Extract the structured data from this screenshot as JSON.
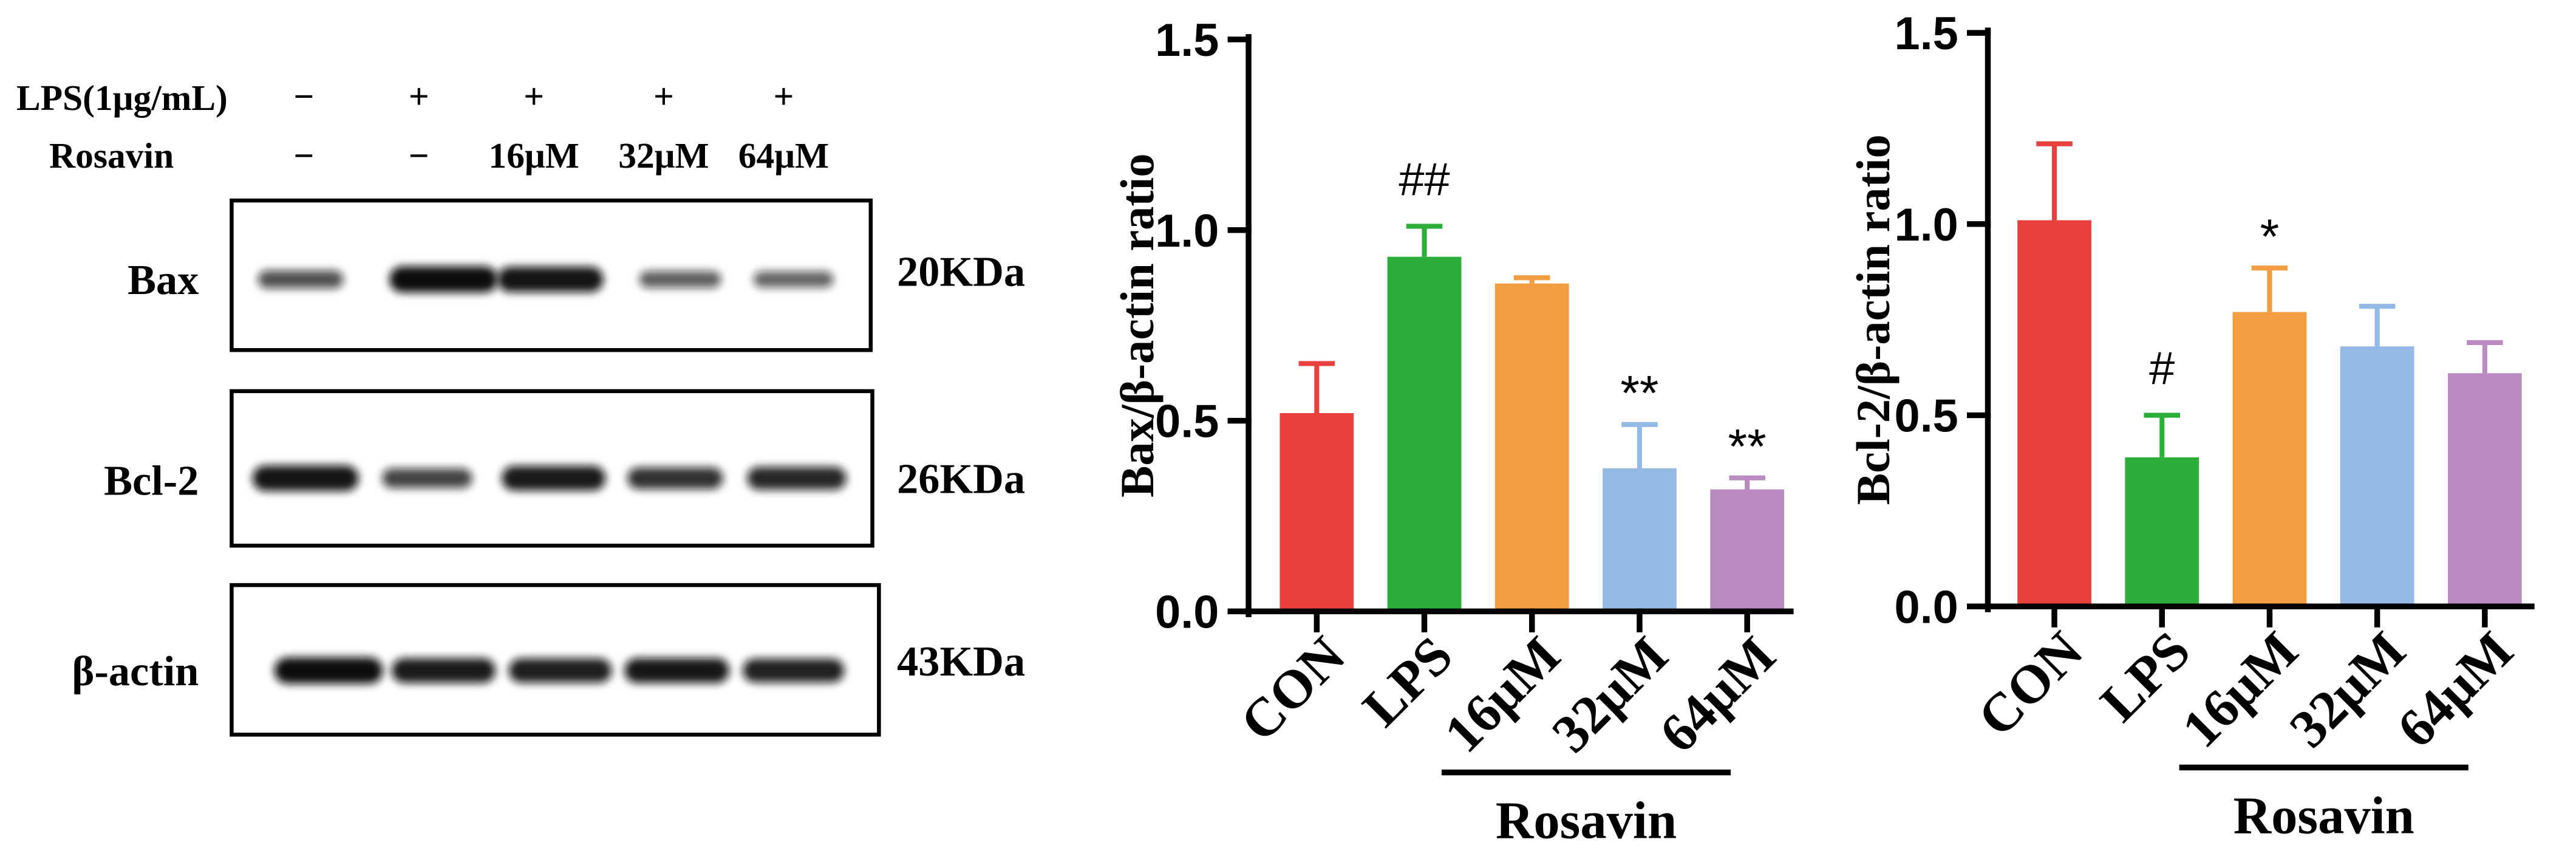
{
  "figure": {
    "blot": {
      "treatment_labels": {
        "lps": "LPS(1μg/mL)",
        "rosavin": "Rosavin"
      },
      "lanes": [
        {
          "lps": "−",
          "rosavin": "−"
        },
        {
          "lps": "+",
          "rosavin": "−"
        },
        {
          "lps": "+",
          "rosavin": "16μM"
        },
        {
          "lps": "+",
          "rosavin": "32μM"
        },
        {
          "lps": "+",
          "rosavin": "64μM"
        }
      ],
      "rows": [
        {
          "protein": "Bax",
          "size": "20KDa",
          "band_intensity": [
            0.5,
            1.0,
            0.95,
            0.42,
            0.38
          ]
        },
        {
          "protein": "Bcl-2",
          "size": "26KDa",
          "band_intensity": [
            0.95,
            0.6,
            0.9,
            0.72,
            0.8
          ]
        },
        {
          "protein": "β-actin",
          "size": "43KDa",
          "band_intensity": [
            1.0,
            0.9,
            0.88,
            0.92,
            0.85
          ]
        }
      ]
    }
  },
  "chart_data": [
    {
      "type": "bar",
      "ylabel": "Bax/β-actin ratio",
      "categories": [
        "CON",
        "LPS",
        "16μM",
        "32μM",
        "64μM"
      ],
      "values": [
        0.52,
        0.93,
        0.86,
        0.375,
        0.32
      ],
      "errors": [
        0.13,
        0.08,
        0.015,
        0.115,
        0.03
      ],
      "colors": [
        "#E8403E",
        "#2BAE3A",
        "#F29D40",
        "#93B9E4",
        "#B98BC0"
      ],
      "ylim": [
        0,
        1.5
      ],
      "yticks": [
        0,
        0.5,
        1.0,
        1.5
      ],
      "ytick_labels": [
        "0.0",
        "0.5",
        "1.0",
        "1.5"
      ],
      "grid": false,
      "annotations": [
        {
          "index": 1,
          "text": "##"
        },
        {
          "index": 3,
          "text": "**"
        },
        {
          "index": 4,
          "text": "**"
        }
      ],
      "group": {
        "label": "Rosavin",
        "span": [
          2,
          4
        ]
      }
    },
    {
      "type": "bar",
      "ylabel": "Bcl-2/β-actin ratio",
      "categories": [
        "CON",
        "LPS",
        "16μM",
        "32μM",
        "64μM"
      ],
      "values": [
        1.01,
        0.39,
        0.77,
        0.68,
        0.61
      ],
      "errors": [
        0.2,
        0.11,
        0.115,
        0.105,
        0.08
      ],
      "colors": [
        "#E8403E",
        "#2BAE3A",
        "#F29D40",
        "#93B9E4",
        "#B98BC0"
      ],
      "ylim": [
        0,
        1.5
      ],
      "yticks": [
        0,
        0.5,
        1.0,
        1.5
      ],
      "ytick_labels": [
        "0.0",
        "0.5",
        "1.0",
        "1.5"
      ],
      "grid": false,
      "annotations": [
        {
          "index": 1,
          "text": "#"
        },
        {
          "index": 2,
          "text": "*"
        }
      ],
      "group": {
        "label": "Rosavin",
        "span": [
          2,
          4
        ]
      }
    }
  ]
}
